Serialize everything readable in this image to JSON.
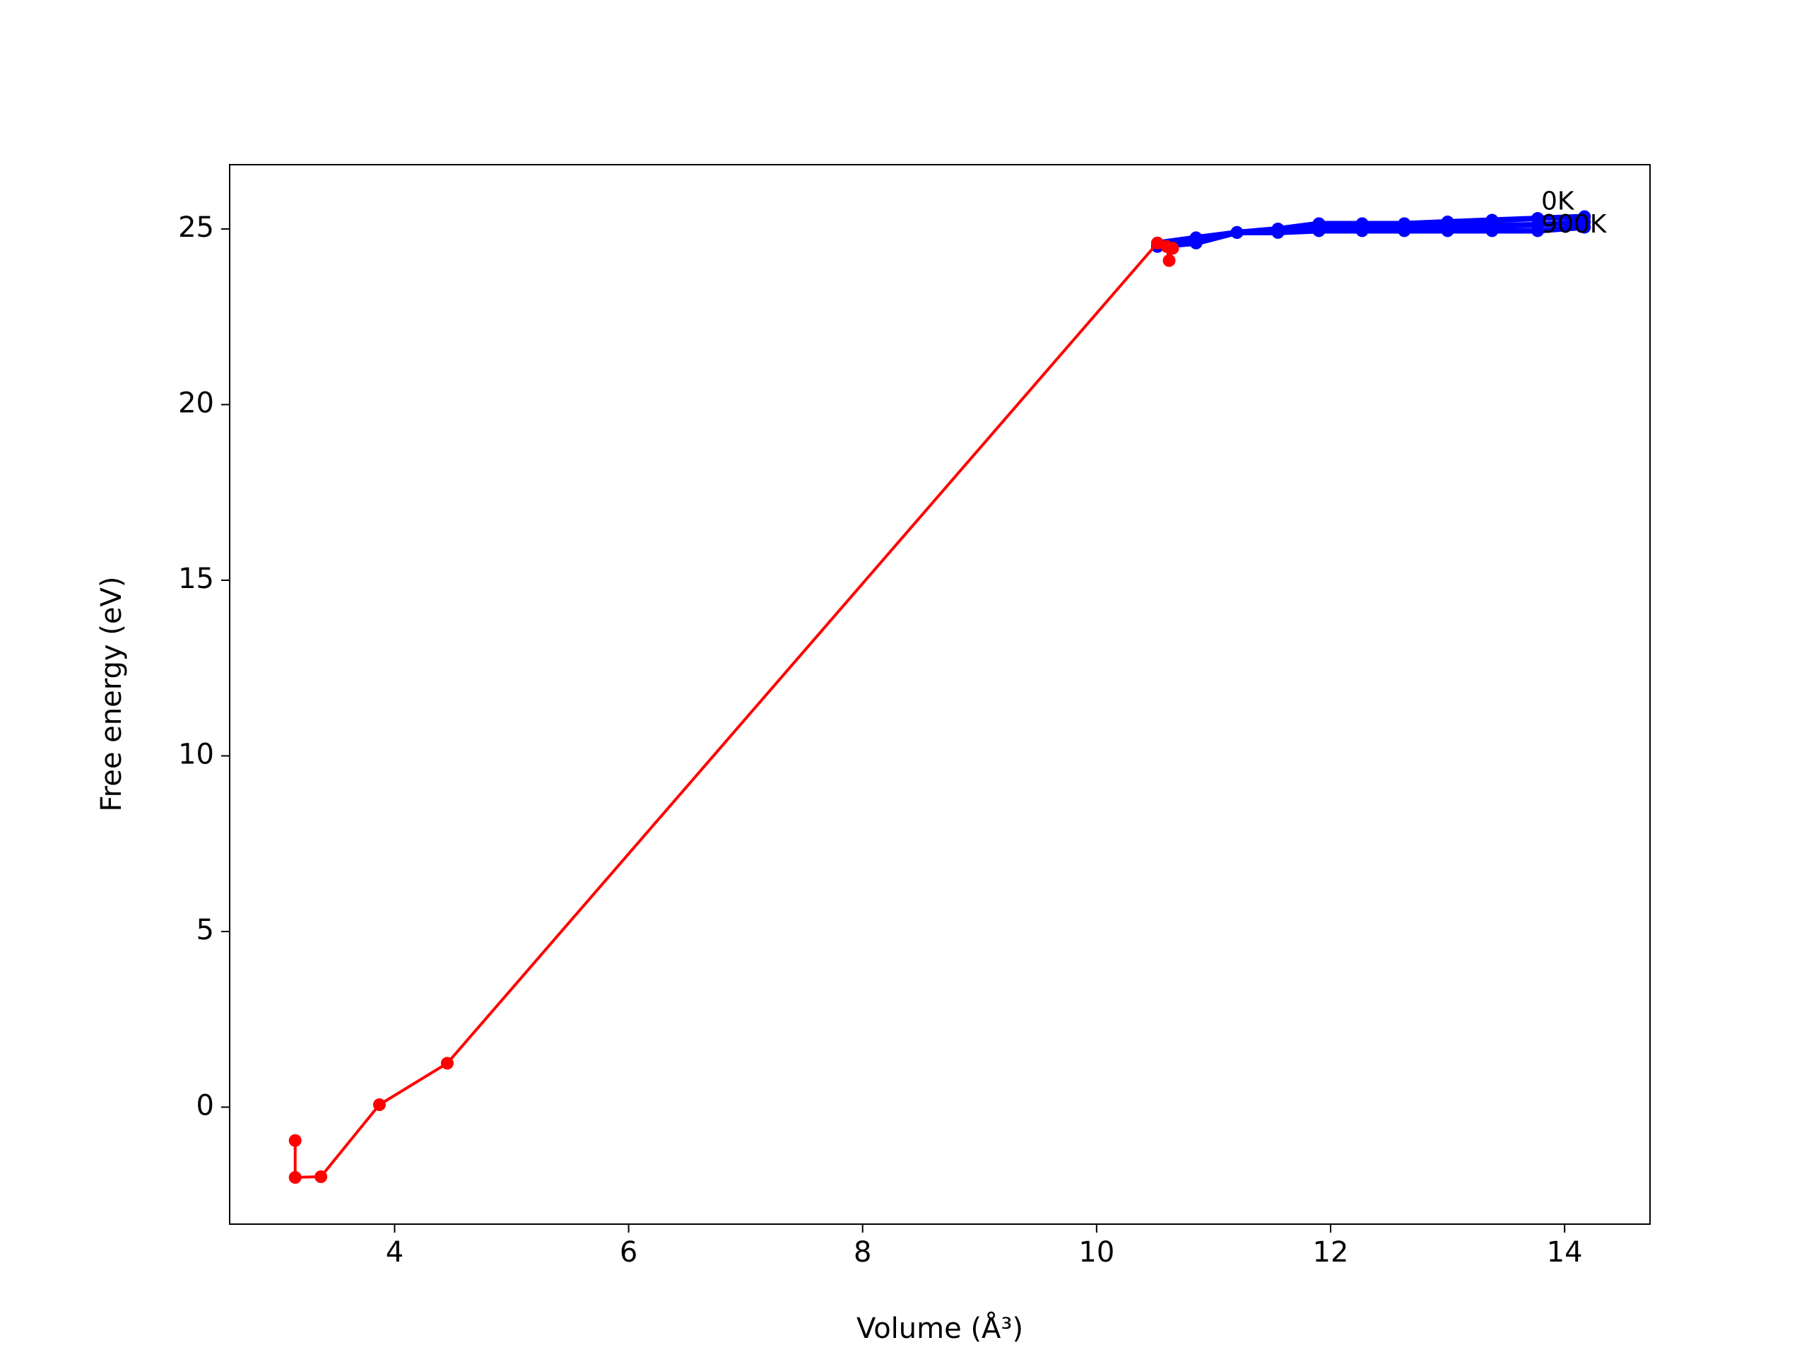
{
  "chart_data": {
    "type": "line",
    "xlabel": "Volume (Å³)",
    "ylabel": "Free energy (eV)",
    "xlim": [
      2.59,
      14.73
    ],
    "ylim": [
      -3.33,
      26.83
    ],
    "xticks": [
      4,
      6,
      8,
      10,
      12,
      14
    ],
    "yticks": [
      0,
      5,
      10,
      15,
      20,
      25
    ],
    "grid": false,
    "series": [
      {
        "color": "#0000ff",
        "x": [
          10.52,
          10.85,
          11.2,
          11.55,
          11.9,
          12.27,
          12.63,
          13.0,
          13.38,
          13.77,
          14.17
        ],
        "values": [
          24.6,
          24.75,
          24.9,
          25.0,
          25.15,
          25.15,
          25.15,
          25.2,
          25.25,
          25.3,
          25.35
        ]
      },
      {
        "color": "#0000ff",
        "x": [
          10.52,
          10.85,
          11.2,
          11.55,
          11.9,
          12.27,
          12.63,
          13.0,
          13.38,
          13.77,
          14.17
        ],
        "values": [
          24.55,
          24.68,
          24.9,
          24.97,
          25.05,
          25.05,
          25.05,
          25.08,
          25.1,
          25.12,
          25.2
        ]
      },
      {
        "color": "#0000ff",
        "x": [
          10.52,
          10.85,
          11.2,
          11.55,
          11.9,
          12.27,
          12.63,
          13.0,
          13.38,
          13.77,
          14.17
        ],
        "values": [
          24.5,
          24.6,
          24.9,
          24.9,
          24.95,
          24.95,
          24.95,
          24.95,
          24.95,
          24.95,
          25.05
        ]
      },
      {
        "color": "#ff0000",
        "x": [
          3.15,
          3.15,
          3.37,
          3.87,
          4.45,
          10.52,
          10.6,
          10.62,
          10.65
        ],
        "values": [
          -0.95,
          -2.0,
          -1.98,
          0.07,
          1.25,
          24.6,
          24.5,
          24.1,
          24.45
        ]
      }
    ],
    "annotations": [
      {
        "text": "0K",
        "x": 13.8,
        "y": 25.75
      },
      {
        "text": "900K",
        "x": 13.8,
        "y": 25.1
      }
    ]
  }
}
